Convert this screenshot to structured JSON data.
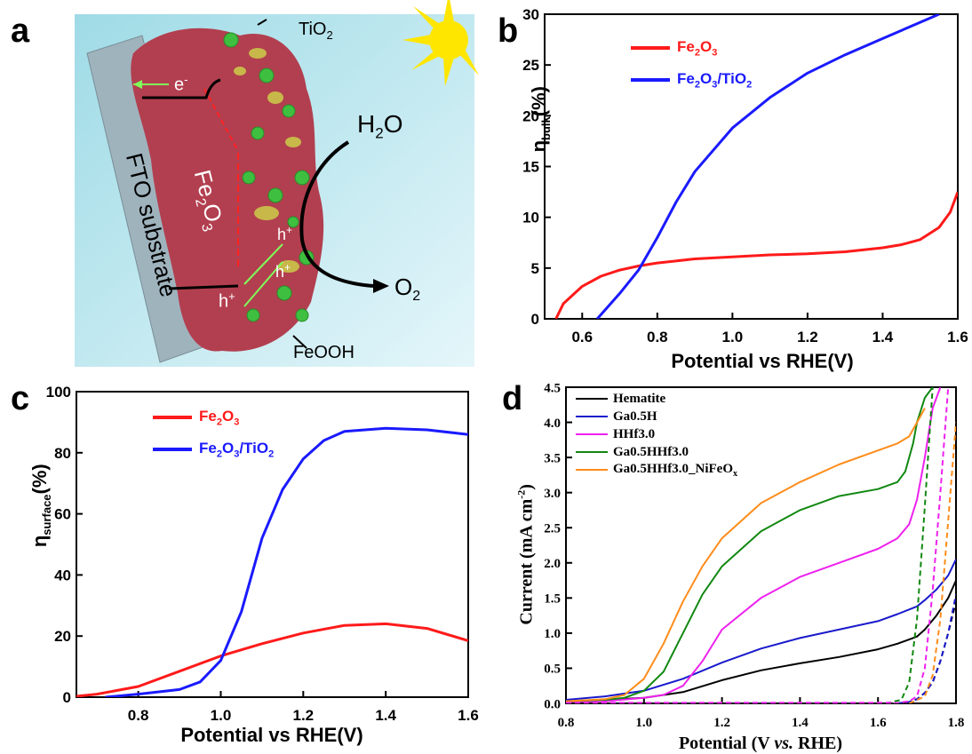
{
  "panels": {
    "a": {
      "letter": "a"
    },
    "b": {
      "letter": "b"
    },
    "c": {
      "letter": "c"
    },
    "d": {
      "letter": "d"
    }
  },
  "schematic": {
    "labels": {
      "tio2": "TiO",
      "tio2_sub": "2",
      "electron": "e",
      "electron_sup": "-",
      "water": "H",
      "water_sub": "2",
      "water_tail": "O",
      "oxygen": "O",
      "oxygen_sub": "2",
      "hole_1": "h",
      "hole_2": "h",
      "hole_3": "h",
      "hole_sup": "+",
      "feooh": "FeOOH",
      "fto": "FTO substrate",
      "fe2o3": "Fe",
      "fe2o3_sub1": "2",
      "fe2o3_mid": "O",
      "fe2o3_sub2": "3"
    },
    "colors": {
      "background": "#c8eef5",
      "fto": "#9fb3bd",
      "fe2o3": "#b23f4f",
      "tio2_particles": "#3fbf3f",
      "feooh": "#c8b84a",
      "sun": "#ffe600"
    }
  },
  "chart_data": [
    {
      "panel": "b",
      "type": "line",
      "ylabel_main": "η",
      "ylabel_sub": "bulk",
      "ylabel_tail": "(%)",
      "xlabel": "Potential vs RHE(V)",
      "xlim": [
        0.5,
        1.6
      ],
      "ylim": [
        0,
        30
      ],
      "xticks": [
        "0.6",
        "0.8",
        "1.0",
        "1.2",
        "1.4",
        "1.6"
      ],
      "yticks": [
        "0",
        "5",
        "10",
        "15",
        "20",
        "25",
        "30"
      ],
      "legend_position": "top-left",
      "series": [
        {
          "name_main": "Fe",
          "name_sub1": "2",
          "name_mid": "O",
          "name_sub2": "3",
          "name_rest": "",
          "name_sub3": "",
          "color": "#ff1a1a",
          "x": [
            0.53,
            0.55,
            0.6,
            0.65,
            0.7,
            0.75,
            0.8,
            0.9,
            1.0,
            1.1,
            1.2,
            1.3,
            1.4,
            1.45,
            1.5,
            1.55,
            1.58,
            1.6
          ],
          "y": [
            0,
            1.5,
            3.2,
            4.2,
            4.8,
            5.2,
            5.5,
            5.9,
            6.1,
            6.3,
            6.4,
            6.6,
            7.0,
            7.3,
            7.8,
            9.0,
            10.5,
            12.5
          ]
        },
        {
          "name_main": "Fe",
          "name_sub1": "2",
          "name_mid": "O",
          "name_sub2": "3",
          "name_rest": "/TiO",
          "name_sub3": "2",
          "color": "#1a1aff",
          "x": [
            0.64,
            0.7,
            0.75,
            0.8,
            0.85,
            0.9,
            1.0,
            1.1,
            1.2,
            1.3,
            1.4,
            1.5,
            1.55
          ],
          "y": [
            0,
            2.5,
            4.8,
            8.0,
            11.5,
            14.5,
            18.8,
            21.8,
            24.2,
            26.0,
            27.6,
            29.2,
            30
          ]
        }
      ]
    },
    {
      "panel": "c",
      "type": "line",
      "ylabel_main": "η",
      "ylabel_sub": "surface",
      "ylabel_tail": "(%)",
      "xlabel": "Potential vs RHE(V)",
      "xlim": [
        0.65,
        1.6
      ],
      "ylim": [
        0,
        100
      ],
      "xticks": [
        "0.8",
        "1.0",
        "1.2",
        "1.4",
        "1.6"
      ],
      "yticks": [
        "0",
        "20",
        "40",
        "60",
        "80",
        "100"
      ],
      "legend_position": "top-left",
      "series": [
        {
          "name_main": "Fe",
          "name_sub1": "2",
          "name_mid": "O",
          "name_sub2": "3",
          "name_rest": "",
          "name_sub3": "",
          "color": "#ff1a1a",
          "x": [
            0.65,
            0.7,
            0.8,
            0.9,
            1.0,
            1.1,
            1.2,
            1.3,
            1.4,
            1.5,
            1.55,
            1.6
          ],
          "y": [
            0.3,
            1.0,
            3.5,
            8.5,
            13.5,
            17.5,
            21.0,
            23.5,
            24.0,
            22.5,
            20.5,
            18.5
          ]
        },
        {
          "name_main": "Fe",
          "name_sub1": "2",
          "name_mid": "O",
          "name_sub2": "3",
          "name_rest": "/TiO",
          "name_sub3": "2",
          "color": "#1a1aff",
          "x": [
            0.72,
            0.8,
            0.9,
            0.95,
            1.0,
            1.05,
            1.1,
            1.15,
            1.2,
            1.25,
            1.3,
            1.4,
            1.5,
            1.6
          ],
          "y": [
            0,
            1.0,
            2.5,
            5.0,
            12.0,
            28.0,
            52.0,
            68.0,
            78.0,
            84.0,
            87.0,
            88.0,
            87.5,
            86.0
          ]
        }
      ]
    },
    {
      "panel": "d",
      "type": "line",
      "ylabel": "Current (mA cm",
      "ylabel_sup": "-2",
      "ylabel_tail": ")",
      "xlabel_pre": "Potential (V ",
      "xlabel_italic": "vs.",
      "xlabel_post": " RHE)",
      "xlim": [
        0.8,
        1.8
      ],
      "ylim": [
        0,
        4.5
      ],
      "xticks": [
        "0.8",
        "1.0",
        "1.2",
        "1.4",
        "1.6",
        "1.8"
      ],
      "yticks": [
        "0.0",
        "0.5",
        "1.0",
        "1.5",
        "2.0",
        "2.5",
        "3.0",
        "3.5",
        "4.0",
        "4.5"
      ],
      "legend_position": "top-left",
      "series": [
        {
          "name": "Hematite",
          "name_sub": "",
          "color": "#000000",
          "x": [
            0.8,
            0.9,
            1.0,
            1.1,
            1.2,
            1.3,
            1.4,
            1.5,
            1.6,
            1.65,
            1.7,
            1.72,
            1.75,
            1.78,
            1.8
          ],
          "y": [
            0.03,
            0.05,
            0.08,
            0.16,
            0.33,
            0.47,
            0.57,
            0.66,
            0.77,
            0.85,
            0.95,
            1.05,
            1.25,
            1.5,
            1.75
          ],
          "dark_x": [
            1.65,
            1.68,
            1.7,
            1.72,
            1.74,
            1.76,
            1.78,
            1.8
          ],
          "dark_y": [
            0.0,
            0.02,
            0.06,
            0.15,
            0.3,
            0.6,
            1.0,
            1.45
          ]
        },
        {
          "name": "Ga0.5H",
          "name_sub": "",
          "color": "#1a1acc",
          "x": [
            0.8,
            0.9,
            1.0,
            1.1,
            1.2,
            1.3,
            1.4,
            1.5,
            1.6,
            1.65,
            1.7,
            1.72,
            1.75,
            1.78,
            1.8
          ],
          "y": [
            0.05,
            0.1,
            0.18,
            0.35,
            0.58,
            0.78,
            0.93,
            1.05,
            1.17,
            1.27,
            1.38,
            1.47,
            1.62,
            1.82,
            2.05
          ],
          "dark_x": [
            1.65,
            1.68,
            1.7,
            1.72,
            1.74,
            1.76,
            1.78,
            1.8
          ],
          "dark_y": [
            0.0,
            0.02,
            0.06,
            0.15,
            0.3,
            0.6,
            1.0,
            1.55
          ]
        },
        {
          "name": "HHf3.0",
          "name_sub": "",
          "color": "#ee22ee",
          "x": [
            0.8,
            0.9,
            1.0,
            1.05,
            1.1,
            1.15,
            1.2,
            1.3,
            1.4,
            1.5,
            1.6,
            1.65,
            1.68,
            1.7,
            1.72,
            1.74,
            1.76
          ],
          "y": [
            0.02,
            0.03,
            0.08,
            0.12,
            0.25,
            0.6,
            1.05,
            1.5,
            1.8,
            2.0,
            2.2,
            2.35,
            2.55,
            2.9,
            3.5,
            4.2,
            4.5
          ],
          "dark_x": [
            1.64,
            1.68,
            1.7,
            1.72,
            1.74,
            1.76,
            1.78
          ],
          "dark_y": [
            0.0,
            0.03,
            0.1,
            0.5,
            1.6,
            3.0,
            4.5
          ]
        },
        {
          "name": "Ga0.5HHf3.0",
          "name_sub": "",
          "color": "#118811",
          "x": [
            0.8,
            0.9,
            0.95,
            1.0,
            1.05,
            1.1,
            1.15,
            1.2,
            1.3,
            1.4,
            1.5,
            1.6,
            1.65,
            1.67,
            1.69,
            1.7,
            1.72,
            1.74
          ],
          "y": [
            0.03,
            0.05,
            0.08,
            0.18,
            0.45,
            1.0,
            1.55,
            1.95,
            2.45,
            2.75,
            2.95,
            3.05,
            3.15,
            3.3,
            3.7,
            4.0,
            4.35,
            4.5
          ],
          "dark_x": [
            1.62,
            1.66,
            1.68,
            1.7,
            1.72,
            1.74
          ],
          "dark_y": [
            0.0,
            0.05,
            0.3,
            1.2,
            2.8,
            4.5
          ]
        },
        {
          "name": "Ga0.5HHf3.0_NiFeO",
          "name_sub": "x",
          "color": "#ff8c1a",
          "x": [
            0.8,
            0.9,
            0.95,
            1.0,
            1.05,
            1.1,
            1.15,
            1.2,
            1.3,
            1.4,
            1.5,
            1.6,
            1.65,
            1.68,
            1.7,
            1.72
          ],
          "y": [
            0.03,
            0.06,
            0.12,
            0.35,
            0.85,
            1.45,
            1.95,
            2.35,
            2.85,
            3.15,
            3.4,
            3.6,
            3.7,
            3.8,
            4.0,
            4.2
          ],
          "dark_x": [
            1.68,
            1.72,
            1.74,
            1.76,
            1.78,
            1.8
          ],
          "dark_y": [
            0.0,
            0.1,
            0.4,
            1.2,
            2.6,
            4.0
          ]
        }
      ]
    }
  ]
}
